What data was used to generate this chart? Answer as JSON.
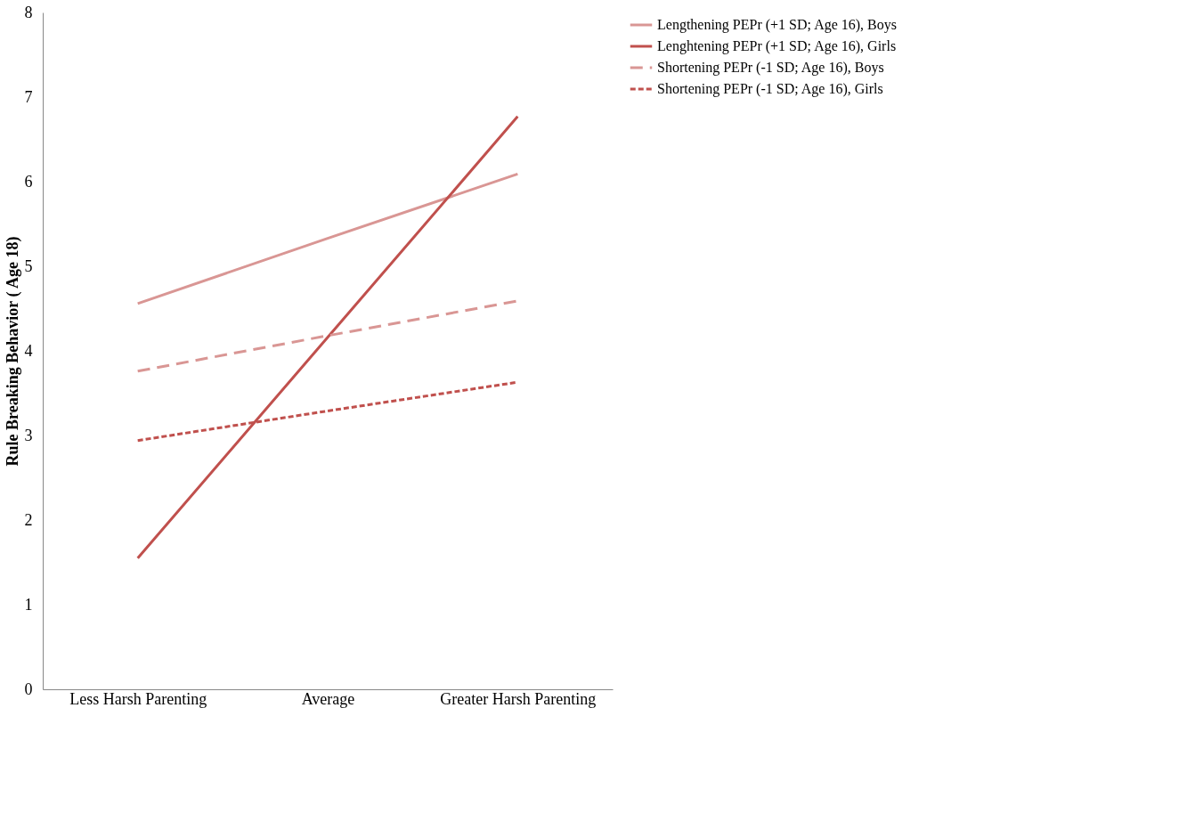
{
  "chart_data": {
    "type": "line",
    "ylabel": "Rule Breaking Behavior ( Age 18)",
    "categories": [
      "Less Harsh Parenting",
      "Average",
      "Greater Harsh Parenting"
    ],
    "series": [
      {
        "name": "Lengthening PEPr   (+1 SD; Age 16), Boys",
        "color": "#d99694",
        "line_style": "solid",
        "values": [
          4.56,
          5.33,
          6.09
        ]
      },
      {
        "name": "Lenghtening PEPr  (+1 SD; Age 16), Girls",
        "color": "#c0504d",
        "line_style": "solid",
        "values": [
          1.55,
          4.16,
          6.77
        ]
      },
      {
        "name": "Shortening PEPr (-1 SD; Age 16), Boys",
        "color": "#d99694",
        "line_style": "dashed",
        "values": [
          3.76,
          4.18,
          4.59
        ]
      },
      {
        "name": "Shortening PEPr (-1 SD; Age 16), Girls",
        "color": "#c0504d",
        "line_style": "dotted",
        "values": [
          2.94,
          3.29,
          3.63
        ]
      }
    ],
    "ylim": [
      0,
      8
    ],
    "yticks": [
      0,
      1,
      2,
      3,
      4,
      5,
      6,
      7,
      8
    ],
    "grid": false,
    "legend": "right",
    "marker": "none"
  }
}
